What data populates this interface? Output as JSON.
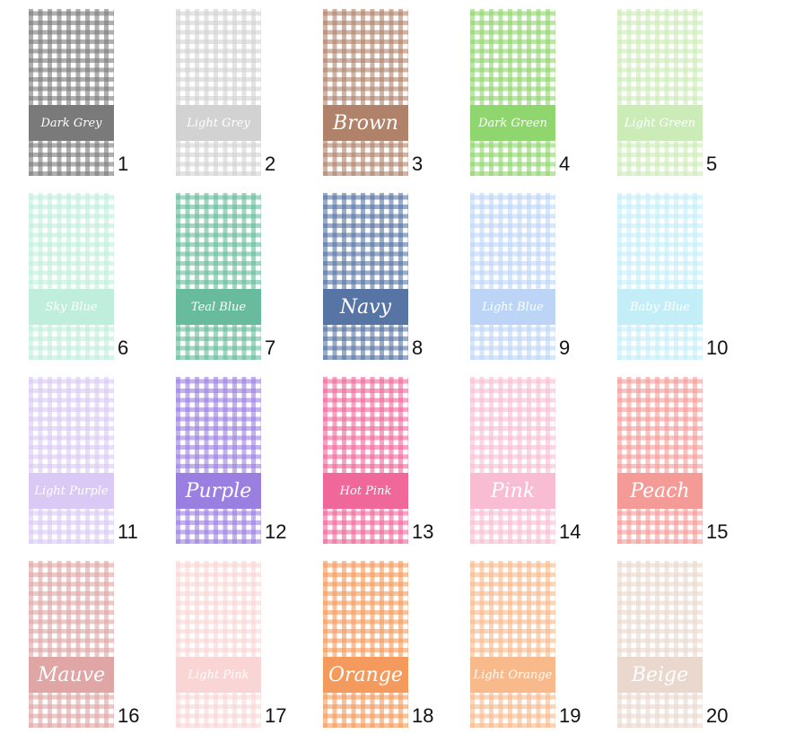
{
  "swatches": [
    {
      "number": "1",
      "label": "Dark Grey",
      "color": "#7a7a7a",
      "big": false
    },
    {
      "number": "2",
      "label": "Light Grey",
      "color": "#d2d2d2",
      "big": false
    },
    {
      "number": "3",
      "label": "Brown",
      "color": "#b0826a",
      "big": true
    },
    {
      "number": "4",
      "label": "Dark Green",
      "color": "#8fd66e",
      "big": false
    },
    {
      "number": "5",
      "label": "Light Green",
      "color": "#cbecb6",
      "big": false
    },
    {
      "number": "6",
      "label": "Sky Blue",
      "color": "#bfeedd",
      "big": false
    },
    {
      "number": "7",
      "label": "Teal Blue",
      "color": "#68bb9d",
      "big": false
    },
    {
      "number": "8",
      "label": "Navy",
      "color": "#5674a4",
      "big": true
    },
    {
      "number": "9",
      "label": "Light Blue",
      "color": "#bcd5f7",
      "big": false
    },
    {
      "number": "10",
      "label": "Baby Blue",
      "color": "#c3eef8",
      "big": false
    },
    {
      "number": "11",
      "label": "Light Purple",
      "color": "#d9c9f4",
      "big": false
    },
    {
      "number": "12",
      "label": "Purple",
      "color": "#9b7fe0",
      "big": true
    },
    {
      "number": "13",
      "label": "Hot Pink",
      "color": "#f0679a",
      "big": false
    },
    {
      "number": "14",
      "label": "Pink",
      "color": "#f8bdd3",
      "big": true
    },
    {
      "number": "15",
      "label": "Peach",
      "color": "#f49b98",
      "big": true
    },
    {
      "number": "16",
      "label": "Mauve",
      "color": "#e0a5a5",
      "big": true
    },
    {
      "number": "17",
      "label": "Light Pink",
      "color": "#f9d5d5",
      "big": false
    },
    {
      "number": "18",
      "label": "Orange",
      "color": "#f49a5c",
      "big": true
    },
    {
      "number": "19",
      "label": "Light Orange",
      "color": "#f8b98b",
      "big": false
    },
    {
      "number": "20",
      "label": "Beige",
      "color": "#ead8cf",
      "big": true
    }
  ]
}
